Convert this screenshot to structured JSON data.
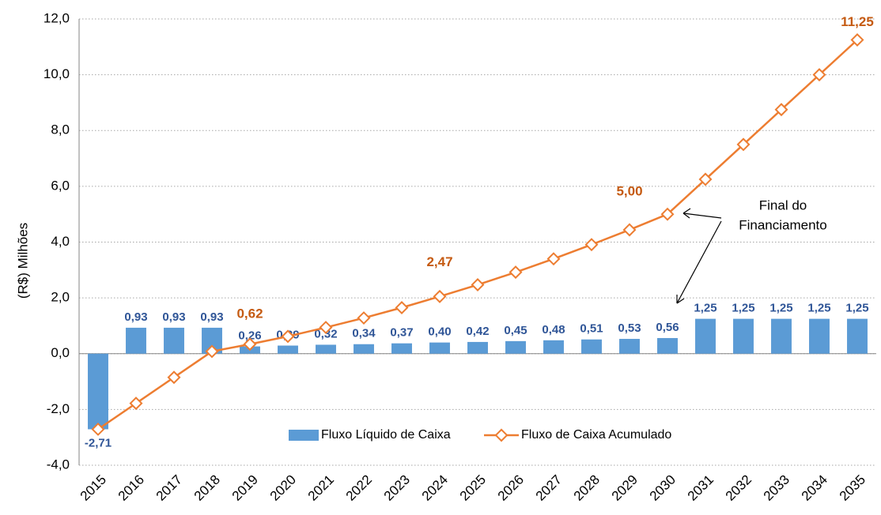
{
  "chart_data": {
    "type": "bar",
    "y_label": "(R$) Milhões",
    "categories": [
      "2015",
      "2016",
      "2017",
      "2018",
      "2019",
      "2020",
      "2021",
      "2022",
      "2023",
      "2024",
      "2025",
      "2026",
      "2027",
      "2028",
      "2029",
      "2030",
      "2031",
      "2032",
      "2033",
      "2034",
      "2035"
    ],
    "series": [
      {
        "name": "Fluxo Líquido de Caixa",
        "type": "bar",
        "color": "#5b9bd5",
        "values": [
          -2.71,
          0.93,
          0.93,
          0.93,
          0.26,
          0.29,
          0.32,
          0.34,
          0.37,
          0.4,
          0.42,
          0.45,
          0.48,
          0.51,
          0.53,
          0.56,
          1.25,
          1.25,
          1.25,
          1.25,
          1.25
        ],
        "value_labels": [
          "-2,71",
          "0,93",
          "0,93",
          "0,93",
          "0,26",
          "0,29",
          "0,32",
          "0,34",
          "0,37",
          "0,40",
          "0,42",
          "0,45",
          "0,48",
          "0,51",
          "0,53",
          "0,56",
          "1,25",
          "1,25",
          "1,25",
          "1,25",
          "1,25"
        ]
      },
      {
        "name": "Fluxo de Caixa Acumulado",
        "type": "line",
        "color": "#ed7d31",
        "values": [
          -2.71,
          -1.78,
          -0.85,
          0.08,
          0.34,
          0.62,
          0.94,
          1.28,
          1.65,
          2.05,
          2.47,
          2.92,
          3.4,
          3.91,
          4.44,
          5.0,
          6.25,
          7.5,
          8.75,
          10.0,
          11.25
        ],
        "value_labels": [
          null,
          null,
          null,
          null,
          null,
          "0,62",
          null,
          null,
          null,
          null,
          "2,47",
          null,
          null,
          null,
          null,
          "5,00",
          null,
          null,
          null,
          null,
          "11,25"
        ]
      }
    ],
    "annotation": [
      "Final do",
      "Financiamento"
    ],
    "ylim": [
      -4,
      12
    ],
    "yticks": [
      {
        "value": -4,
        "label": "-4,0"
      },
      {
        "value": -2,
        "label": "-2,0"
      },
      {
        "value": 0,
        "label": "0,0"
      },
      {
        "value": 2,
        "label": "2,0"
      },
      {
        "value": 4,
        "label": "4,0"
      },
      {
        "value": 6,
        "label": "6,0"
      },
      {
        "value": 8,
        "label": "8,0"
      },
      {
        "value": 10,
        "label": "10,0"
      },
      {
        "value": 12,
        "label": "12,0"
      }
    ],
    "grid": true,
    "legend": "bottom"
  }
}
